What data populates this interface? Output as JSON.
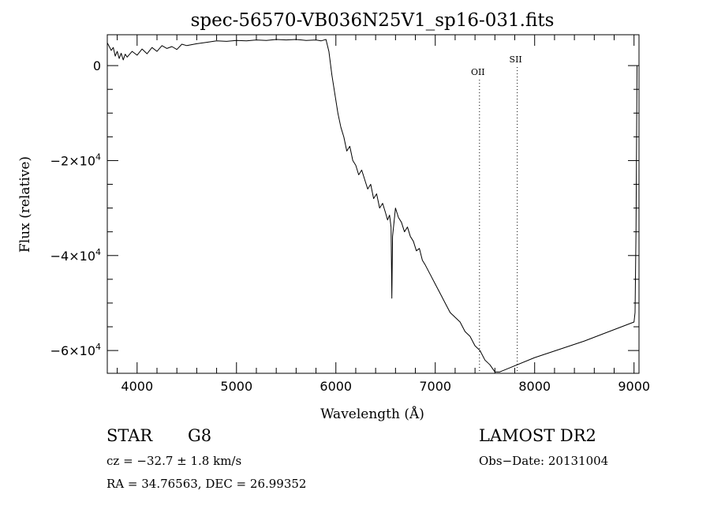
{
  "chart_data": {
    "type": "line",
    "title": "spec-56570-VB036N25V1_sp16-031.fits",
    "xlabel": "Wavelength (Å)",
    "ylabel": "Flux (relative)",
    "xlim": [
      3700,
      9050
    ],
    "ylim": [
      -64800,
      6500
    ],
    "x_ticks": [
      4000,
      5000,
      6000,
      7000,
      8000,
      9000
    ],
    "y_ticks": [
      {
        "value": 0,
        "label": "0"
      },
      {
        "value": -20000,
        "label": "−2×10",
        "exp": "4"
      },
      {
        "value": -40000,
        "label": "−4×10",
        "exp": "4"
      },
      {
        "value": -60000,
        "label": "−6×10",
        "exp": "4"
      }
    ],
    "lines": [
      {
        "label": "OII",
        "x": 7445
      },
      {
        "label": "SII",
        "x": 7825
      }
    ],
    "series": [
      {
        "x": [
          3700,
          3720,
          3740,
          3760,
          3780,
          3800,
          3820,
          3840,
          3860,
          3880,
          3900,
          3950,
          4000,
          4050,
          4100,
          4150,
          4200,
          4250,
          4300,
          4350,
          4400,
          4450,
          4500,
          4600,
          4700,
          4800,
          4900,
          5000,
          5100,
          5200,
          5300,
          5400,
          5500,
          5600,
          5700,
          5800,
          5850,
          5900,
          5930,
          5960,
          5990,
          6020,
          6050,
          6080,
          6110,
          6140,
          6170,
          6200,
          6230,
          6260,
          6290,
          6320,
          6350,
          6380,
          6410,
          6440,
          6470,
          6500,
          6520,
          6540,
          6555,
          6563,
          6570,
          6600,
          6630,
          6660,
          6690,
          6720,
          6750,
          6780,
          6810,
          6840,
          6870,
          6900,
          6950,
          7000,
          7050,
          7100,
          7150,
          7200,
          7250,
          7300,
          7350,
          7400,
          7450,
          7500,
          7550,
          7600,
          7650,
          8000,
          8500,
          9000,
          9010,
          9020,
          9030
        ],
        "y": [
          4800,
          4000,
          3200,
          3800,
          2000,
          3000,
          1500,
          2600,
          1200,
          2400,
          1800,
          3000,
          2200,
          3500,
          2500,
          3800,
          3000,
          4200,
          3600,
          4000,
          3400,
          4500,
          4200,
          4600,
          4900,
          5200,
          5100,
          5300,
          5200,
          5400,
          5300,
          5500,
          5400,
          5500,
          5300,
          5400,
          5200,
          5500,
          3000,
          -2000,
          -6000,
          -10000,
          -13000,
          -15000,
          -18000,
          -17000,
          -20000,
          -21000,
          -23000,
          -22000,
          -24000,
          -26000,
          -25000,
          -28000,
          -27000,
          -30000,
          -29000,
          -31000,
          -32500,
          -31500,
          -34000,
          -49000,
          -36000,
          -30000,
          -32000,
          -33000,
          -35000,
          -34000,
          -36000,
          -37000,
          -39000,
          -38500,
          -41000,
          -42000,
          -44000,
          -46000,
          -48000,
          -50000,
          -52000,
          -53000,
          -54000,
          -56000,
          -57000,
          -59000,
          -60000,
          -62000,
          -63000,
          -64500,
          -64500,
          -61500,
          -58000,
          -54000,
          -52000,
          -35000,
          0
        ]
      }
    ]
  },
  "footer": {
    "object_class": "STAR",
    "subclass": "G8",
    "survey": "LAMOST DR2",
    "cz": "cz = −32.7 ± 1.8 km/s",
    "obs_date": "Obs−Date: 20131004",
    "coords": "RA =  34.76563, DEC =  26.99352"
  }
}
